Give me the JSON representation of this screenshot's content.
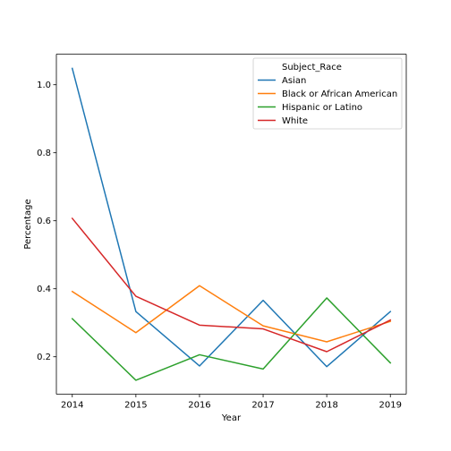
{
  "chart_data": {
    "type": "line",
    "x": [
      2014,
      2015,
      2016,
      2017,
      2018,
      2019
    ],
    "xlabel": "Year",
    "ylabel": "Percentage",
    "xlim": [
      2013.75,
      2019.25
    ],
    "ylim": [
      0.09,
      1.09
    ],
    "yticks": [
      0.2,
      0.4,
      0.6,
      0.8,
      1.0
    ],
    "ytick_labels": [
      "0.2",
      "0.4",
      "0.6",
      "0.8",
      "1.0"
    ],
    "xtick_labels": [
      "2014",
      "2015",
      "2016",
      "2017",
      "2018",
      "2019"
    ],
    "grid": false,
    "legend": {
      "title": "Subject_Race",
      "placement": "top-right"
    },
    "series": [
      {
        "name": "Asian",
        "color": "#1f77b4",
        "values": [
          1.048,
          0.333,
          0.173,
          0.366,
          0.171,
          0.333
        ]
      },
      {
        "name": "Black or African American",
        "color": "#ff7f0e",
        "values": [
          0.392,
          0.271,
          0.409,
          0.291,
          0.244,
          0.304
        ]
      },
      {
        "name": "Hispanic or Latino",
        "color": "#2ca02c",
        "values": [
          0.312,
          0.131,
          0.206,
          0.164,
          0.373,
          0.182
        ]
      },
      {
        "name": "White",
        "color": "#d62728",
        "values": [
          0.607,
          0.378,
          0.293,
          0.282,
          0.215,
          0.308
        ]
      }
    ]
  }
}
